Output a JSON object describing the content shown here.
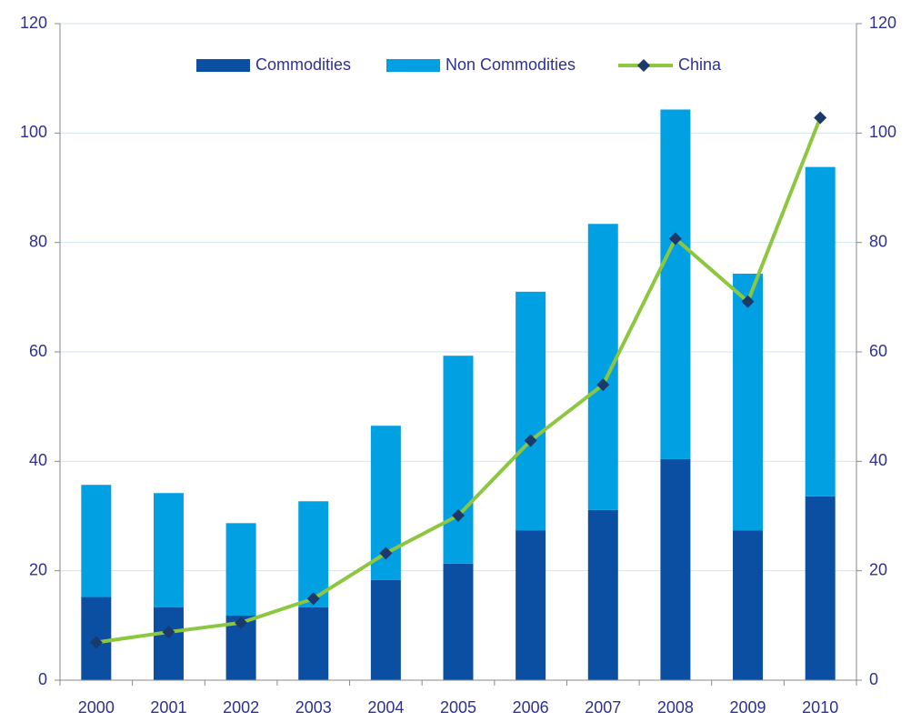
{
  "chart_data": {
    "type": "bar-line",
    "categories": [
      "2000",
      "2001",
      "2002",
      "2003",
      "2004",
      "2005",
      "2006",
      "2007",
      "2008",
      "2009",
      "2010"
    ],
    "series": [
      {
        "name": "Commodities",
        "type": "bar",
        "color": "#0b4fa3",
        "values": [
          15.2,
          13.3,
          11.8,
          13.3,
          18.3,
          21.3,
          27.4,
          31.1,
          40.4,
          27.4,
          33.6
        ]
      },
      {
        "name": "Non Commodities",
        "type": "bar",
        "color": "#00a0e3",
        "values": [
          20.5,
          20.9,
          16.9,
          19.4,
          28.2,
          38.0,
          43.6,
          52.3,
          63.9,
          46.9,
          60.2
        ]
      },
      {
        "name": "China",
        "type": "line",
        "axis": "y2",
        "color": "#8dc63f",
        "marker_color": "#1b3a6b",
        "values": [
          6.9,
          8.8,
          10.5,
          14.9,
          23.2,
          30.1,
          43.8,
          54.0,
          80.7,
          69.2,
          102.8
        ]
      }
    ],
    "ylim": [
      0,
      120
    ],
    "yticks": [
      0,
      20,
      40,
      60,
      80,
      100,
      120
    ],
    "y2lim": [
      0,
      120
    ],
    "y2ticks": [
      0,
      20,
      40,
      60,
      80,
      100,
      120
    ],
    "grid": true,
    "legend": "top",
    "stacked": true
  }
}
